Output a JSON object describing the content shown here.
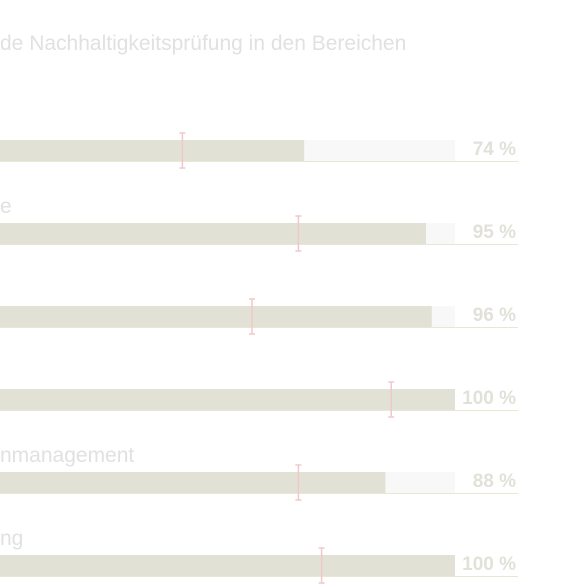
{
  "chart_data": {
    "type": "bar",
    "orientation": "horizontal",
    "title": "de Nachhaltigkeitsprüfung in den Bereichen",
    "categories": [
      "",
      "e",
      "",
      "",
      "nmanagement",
      "ng"
    ],
    "values": [
      74,
      95,
      96,
      100,
      88,
      100
    ],
    "value_labels": [
      "74 %",
      "95 %",
      "96 %",
      "100 %",
      "88 %",
      "100 %"
    ],
    "markers": [
      53,
      73,
      65,
      89,
      73,
      77
    ],
    "xlim": [
      0,
      100
    ],
    "grid": false,
    "legend": "none",
    "colors": {
      "bar": "#e2e1d6",
      "track": "#f8f8f8",
      "baseline": "#e9e6d2",
      "marker": "#f0c8c8",
      "label_text": "#e1e1e1",
      "value_text": "#e2e1d9"
    }
  }
}
